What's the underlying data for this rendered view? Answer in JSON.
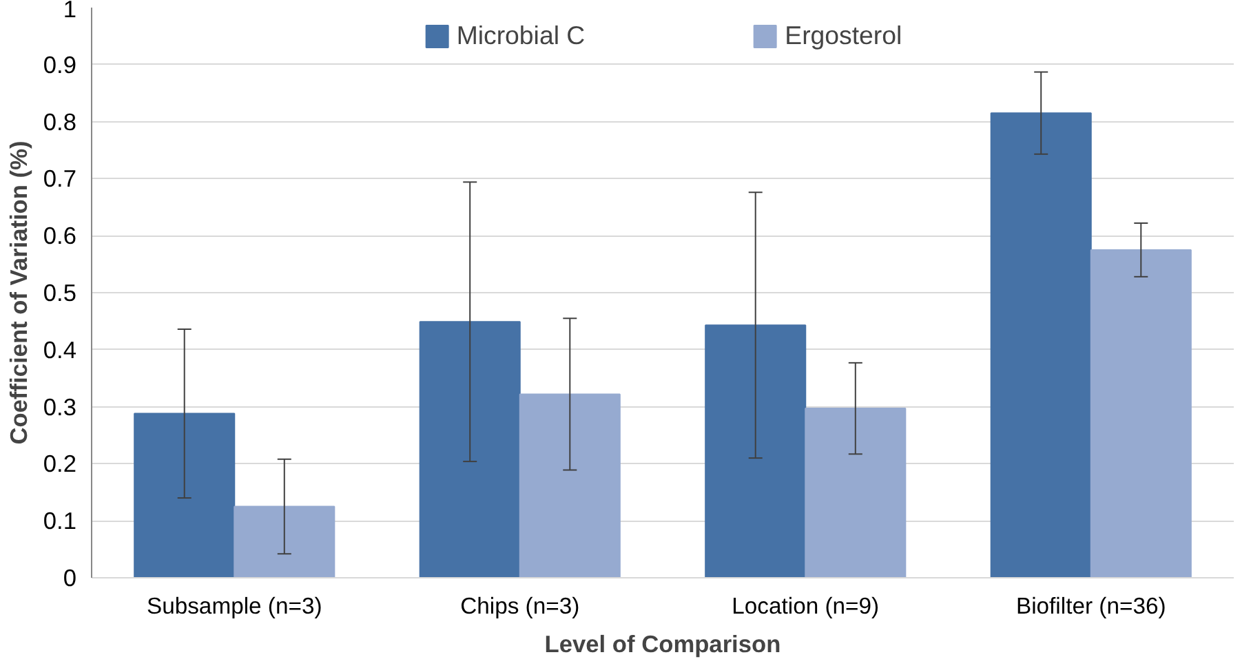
{
  "chart_data": {
    "type": "bar",
    "xlabel": "Level of Comparison",
    "ylabel": "Coefficient of Variation (%)",
    "categories": [
      "Subsample (n=3)",
      "Chips (n=3)",
      "Location (n=9)",
      "Biofilter (n=36)"
    ],
    "series": [
      {
        "name": "Microbial C",
        "color": "#4672a6",
        "values": [
          0.288,
          0.449,
          0.443,
          0.815
        ],
        "errors": [
          0.148,
          0.245,
          0.233,
          0.072
        ]
      },
      {
        "name": "Ergosterol",
        "color": "#96aad0",
        "values": [
          0.125,
          0.322,
          0.297,
          0.575
        ],
        "errors": [
          0.083,
          0.133,
          0.08,
          0.047
        ]
      }
    ],
    "ylim": [
      0,
      1
    ],
    "yticks": [
      0,
      0.1,
      0.2,
      0.3,
      0.4,
      0.5,
      0.6,
      0.7,
      0.8,
      0.9,
      1
    ],
    "grid": "y",
    "legend": "top"
  }
}
